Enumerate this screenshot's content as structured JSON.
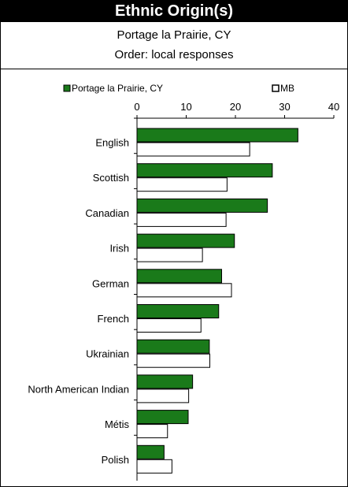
{
  "title": "Ethnic Origin(s)",
  "subtitle": "Portage la Prairie, CY",
  "subtitle2": "Order: local responses",
  "colors": {
    "local": "#1a7a1a",
    "province": "#ffffff",
    "stroke": "#000000"
  },
  "chart_data": {
    "type": "bar",
    "orientation": "horizontal",
    "categories": [
      "English",
      "Scottish",
      "Canadian",
      "Irish",
      "German",
      "French",
      "Ukrainian",
      "North American Indian",
      "Métis",
      "Polish"
    ],
    "series": [
      {
        "name": "Portage la Prairie, CY",
        "values": [
          32.7,
          27.5,
          26.5,
          19.8,
          17.2,
          16.6,
          14.7,
          11.3,
          10.4,
          5.5
        ]
      },
      {
        "name": "MB",
        "values": [
          22.9,
          18.3,
          18.1,
          13.3,
          19.2,
          13.0,
          14.8,
          10.5,
          6.2,
          7.1
        ]
      }
    ],
    "xlim": [
      0,
      40
    ],
    "xticks": [
      0,
      10,
      20,
      30,
      40
    ],
    "legend": "top"
  }
}
